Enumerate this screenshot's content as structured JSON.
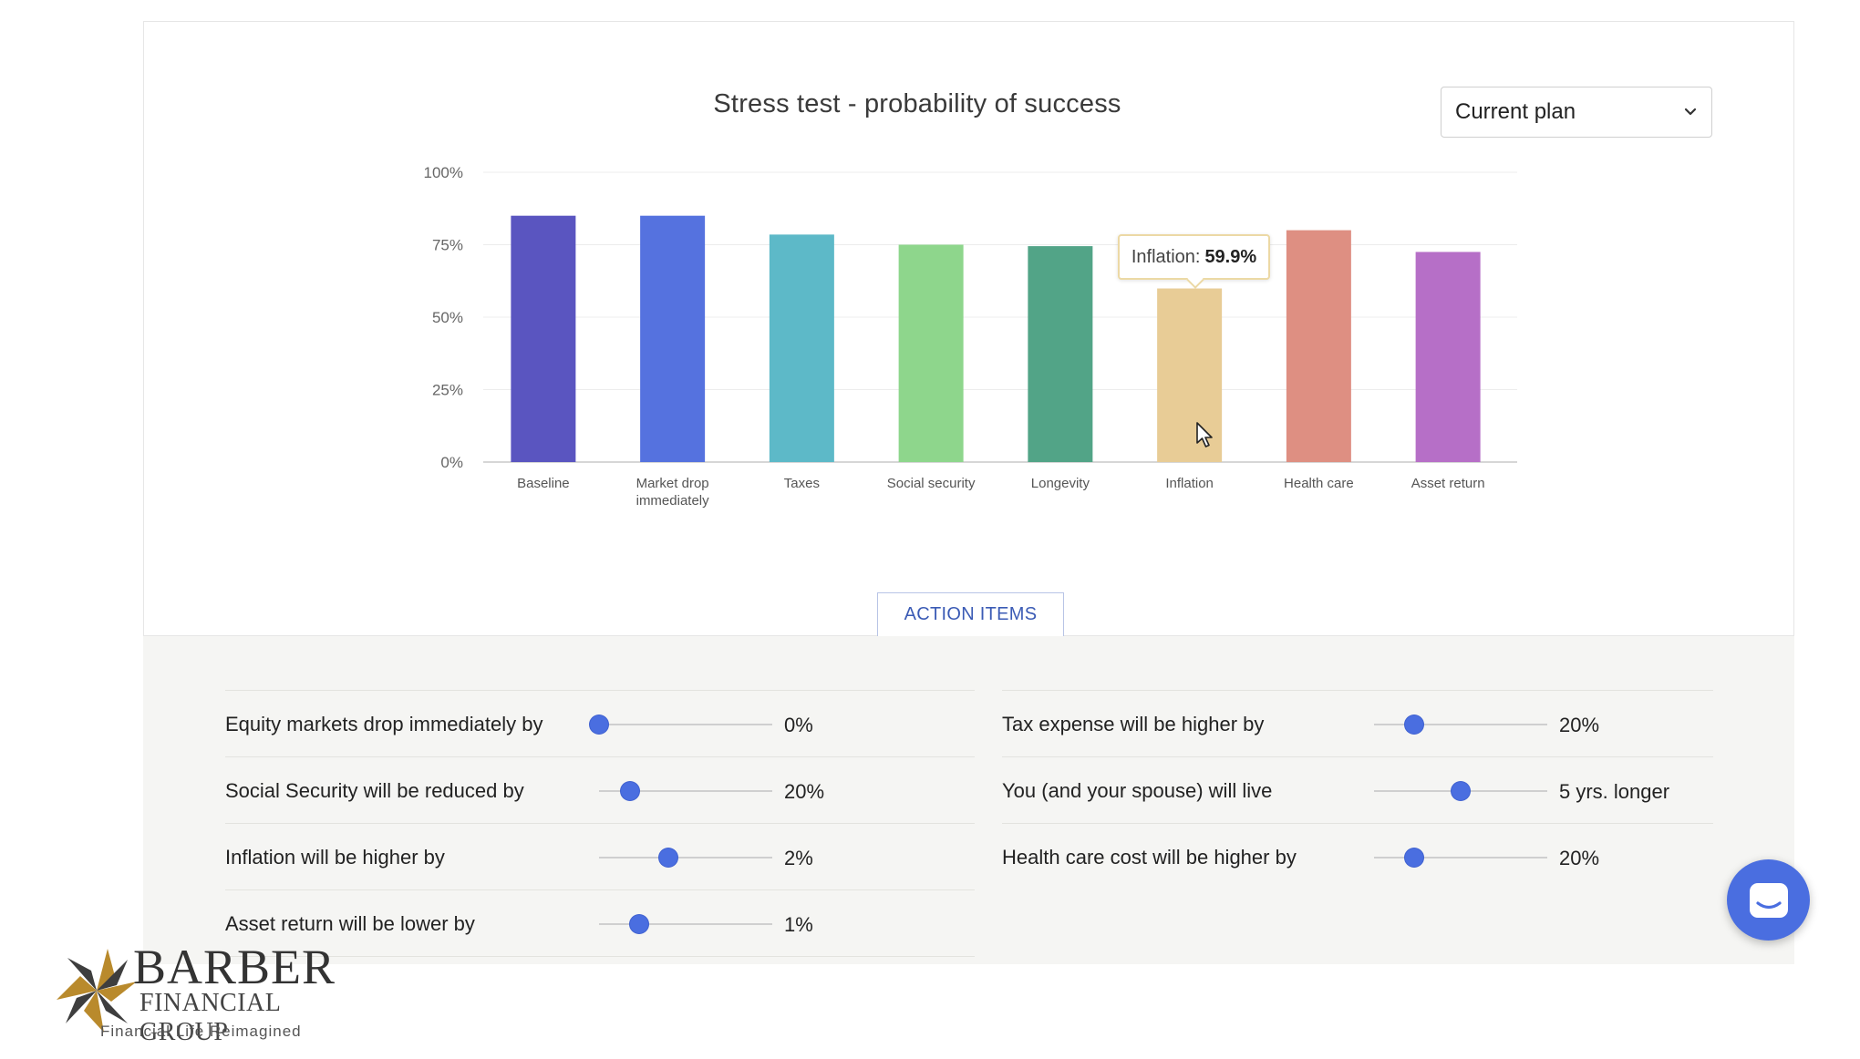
{
  "header": {
    "chart_title": "Stress test - probability of success",
    "plan_select": {
      "selected": "Current plan"
    }
  },
  "chart_data": {
    "type": "bar",
    "title": "Stress test - probability of success",
    "categories": [
      "Baseline",
      "Market drop immediately",
      "Taxes",
      "Social security",
      "Longevity",
      "Inflation",
      "Health care",
      "Asset return"
    ],
    "values": [
      85,
      85,
      78.5,
      75,
      74.5,
      59.9,
      80,
      72.5
    ],
    "colors": [
      "#5a55c0",
      "#5572df",
      "#5db9c8",
      "#8ed68c",
      "#52a487",
      "#e8cc96",
      "#de8f82",
      "#b66fc7"
    ],
    "y_ticks": [
      "0%",
      "25%",
      "50%",
      "75%",
      "100%"
    ],
    "ylim": [
      0,
      100
    ],
    "grid": true
  },
  "tooltip": {
    "label": "Inflation:",
    "value": "59.9%"
  },
  "action_items": {
    "label": "ACTION ITEMS"
  },
  "stress_inputs": [
    {
      "label": "Equity markets drop immediately by",
      "value": "0%",
      "level": 0.0
    },
    {
      "label": "Tax expense will be higher by",
      "value": "20%",
      "level": 0.23
    },
    {
      "label": "Social Security will be reduced by",
      "value": "20%",
      "level": 0.18
    },
    {
      "label": "You (and your spouse) will live",
      "value": "5 yrs. longer",
      "level": 0.5
    },
    {
      "label": "Inflation will be higher by",
      "value": "2%",
      "level": 0.4
    },
    {
      "label": "Health care cost will be higher by",
      "value": "20%",
      "level": 0.23
    },
    {
      "label": "Asset return will be lower by",
      "value": "1%",
      "level": 0.23
    }
  ],
  "logo": {
    "name": "BARBER",
    "group": "FINANCIAL GROUP",
    "tagline": "Financial Life Reimagined"
  },
  "icons": {
    "chat": "chat-icon",
    "chevron": "chevron-down-icon",
    "cursor": "mouse-cursor-icon"
  }
}
